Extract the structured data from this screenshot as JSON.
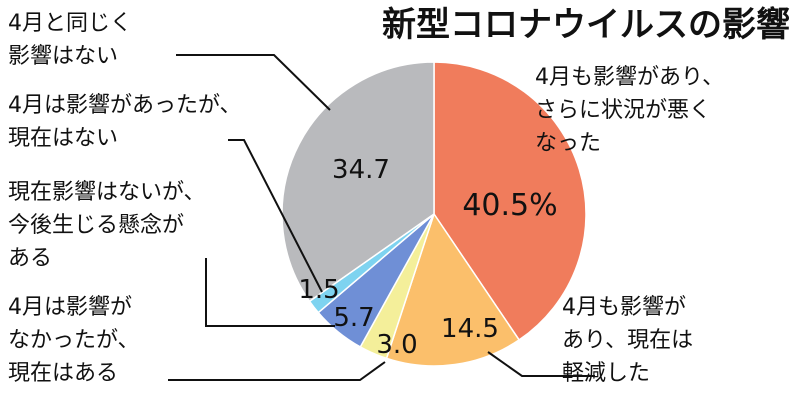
{
  "chart_data": {
    "type": "pie",
    "title": "新型コロナウイルスの影響",
    "start_angle_deg": 0,
    "direction": "clockwise",
    "slices": [
      {
        "label": [
          "4月も影響があり、",
          "さらに状況が悪く",
          "なった"
        ],
        "value": 40.5,
        "value_label": "40.5%",
        "color": "#f07c5c"
      },
      {
        "label": [
          "4月も影響が",
          "あり、現在は",
          "軽減した"
        ],
        "value": 14.5,
        "value_label": "14.5",
        "color": "#fbbf6b"
      },
      {
        "label": [
          "4月は影響が",
          "なかったが、",
          "現在はある"
        ],
        "value": 3.0,
        "value_label": "3.0",
        "color": "#f4ef9a"
      },
      {
        "label": [
          "現在影響はないが、",
          "今後生じる懸念が",
          "ある"
        ],
        "value": 5.7,
        "value_label": "5.7",
        "color": "#6f8fd6"
      },
      {
        "label": [
          "4月は影響があったが、",
          "現在はない"
        ],
        "value": 1.5,
        "value_label": "1.5",
        "color": "#7ed3f0"
      },
      {
        "label": [
          "4月と同じく",
          "影響はない"
        ],
        "value": 34.7,
        "value_label": "34.7",
        "color": "#b9babd"
      }
    ]
  }
}
